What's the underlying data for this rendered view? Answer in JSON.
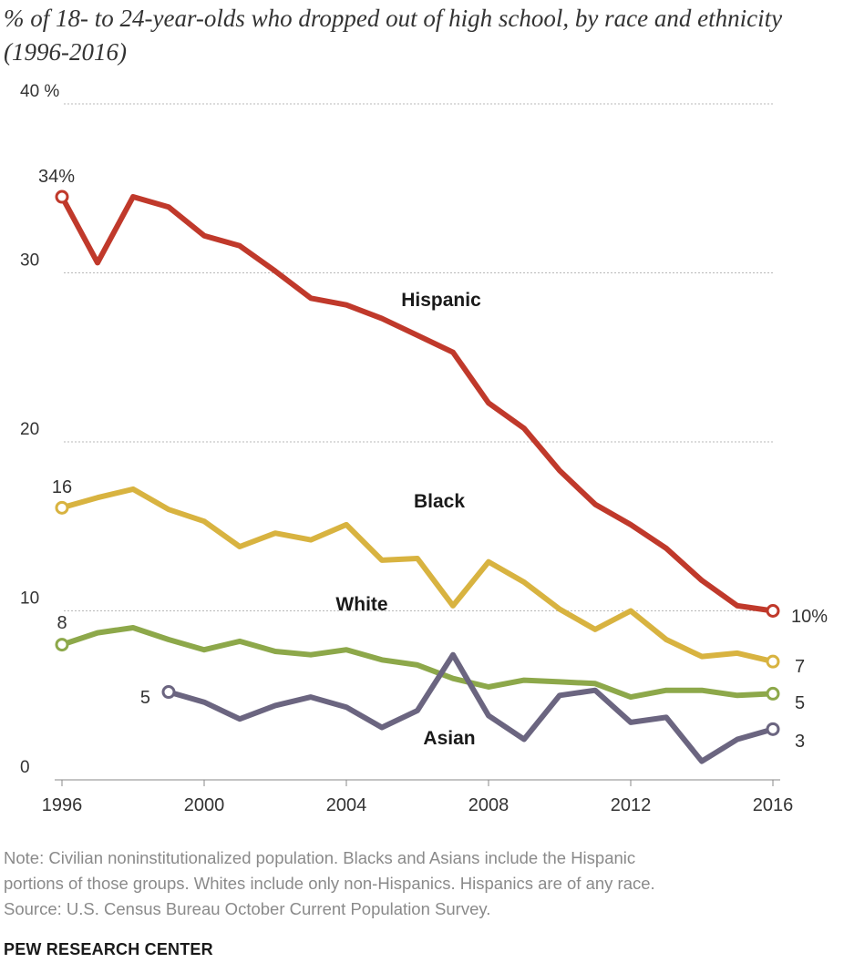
{
  "title": "% of 18- to 24-year-olds who dropped out of high school, by race and ethnicity (1996-2016)",
  "note_lines": [
    "Note: Civilian noninstitutionalized population. Blacks and Asians include the Hispanic",
    "portions of those groups. Whites include only non-Hispanics. Hispanics are of any race.",
    "Source: U.S. Census Bureau October Current Population Survey."
  ],
  "source_org": "PEW RESEARCH CENTER",
  "chart_data": {
    "type": "line",
    "title": "% of 18- to 24-year-olds who dropped out of high school, by race and ethnicity (1996-2016)",
    "xlabel": "",
    "ylabel": "",
    "xlim": [
      1996,
      2016
    ],
    "ylim": [
      0,
      40
    ],
    "x_ticks": [
      "1996",
      "2000",
      "2004",
      "2008",
      "2012",
      "2016"
    ],
    "y_ticks": [
      "0",
      "10",
      "20",
      "30",
      "40 %"
    ],
    "grid": "horizontal dotted",
    "series": [
      {
        "name": "Hispanic",
        "color": "#c0392b",
        "x": [
          1996,
          1997,
          1998,
          1999,
          2000,
          2001,
          2002,
          2003,
          2004,
          2005,
          2006,
          2007,
          2008,
          2009,
          2010,
          2011,
          2012,
          2013,
          2014,
          2015,
          2016
        ],
        "values": [
          34.5,
          30.6,
          34.5,
          33.9,
          32.2,
          31.6,
          30.1,
          28.5,
          28.1,
          27.3,
          26.3,
          25.3,
          22.3,
          20.8,
          18.3,
          16.3,
          15.1,
          13.7,
          11.8,
          10.3,
          10.0
        ],
        "start_label": "34%",
        "end_label": "10%"
      },
      {
        "name": "Black",
        "color": "#d8b340",
        "x": [
          1996,
          1997,
          1998,
          1999,
          2000,
          2001,
          2002,
          2003,
          2004,
          2005,
          2006,
          2007,
          2008,
          2009,
          2010,
          2011,
          2012,
          2013,
          2014,
          2015,
          2016
        ],
        "values": [
          16.1,
          16.7,
          17.2,
          16.0,
          15.3,
          13.8,
          14.6,
          14.2,
          15.1,
          13.0,
          13.1,
          10.3,
          12.9,
          11.7,
          10.1,
          8.9,
          10.0,
          8.3,
          7.3,
          7.5,
          7.0
        ],
        "start_label": "16",
        "end_label": "7"
      },
      {
        "name": "White",
        "color": "#8da84a",
        "x": [
          1996,
          1997,
          1998,
          1999,
          2000,
          2001,
          2002,
          2003,
          2004,
          2005,
          2006,
          2007,
          2008,
          2009,
          2010,
          2011,
          2012,
          2013,
          2014,
          2015,
          2016
        ],
        "values": [
          8.0,
          8.7,
          9.0,
          8.3,
          7.7,
          8.2,
          7.6,
          7.4,
          7.7,
          7.1,
          6.8,
          6.0,
          5.5,
          5.9,
          5.8,
          5.7,
          4.9,
          5.3,
          5.3,
          5.0,
          5.1
        ],
        "start_label": "8",
        "end_label": "5"
      },
      {
        "name": "Asian",
        "color": "#6b6580",
        "x": [
          1999,
          2000,
          2001,
          2002,
          2003,
          2004,
          2005,
          2006,
          2007,
          2008,
          2009,
          2010,
          2011,
          2012,
          2013,
          2014,
          2015,
          2016
        ],
        "values": [
          5.2,
          4.6,
          3.6,
          4.4,
          4.9,
          4.3,
          3.1,
          4.1,
          7.4,
          3.8,
          2.4,
          5.0,
          5.3,
          3.4,
          3.7,
          1.1,
          2.4,
          3.0
        ],
        "start_label": "5",
        "end_label": "3"
      }
    ]
  }
}
